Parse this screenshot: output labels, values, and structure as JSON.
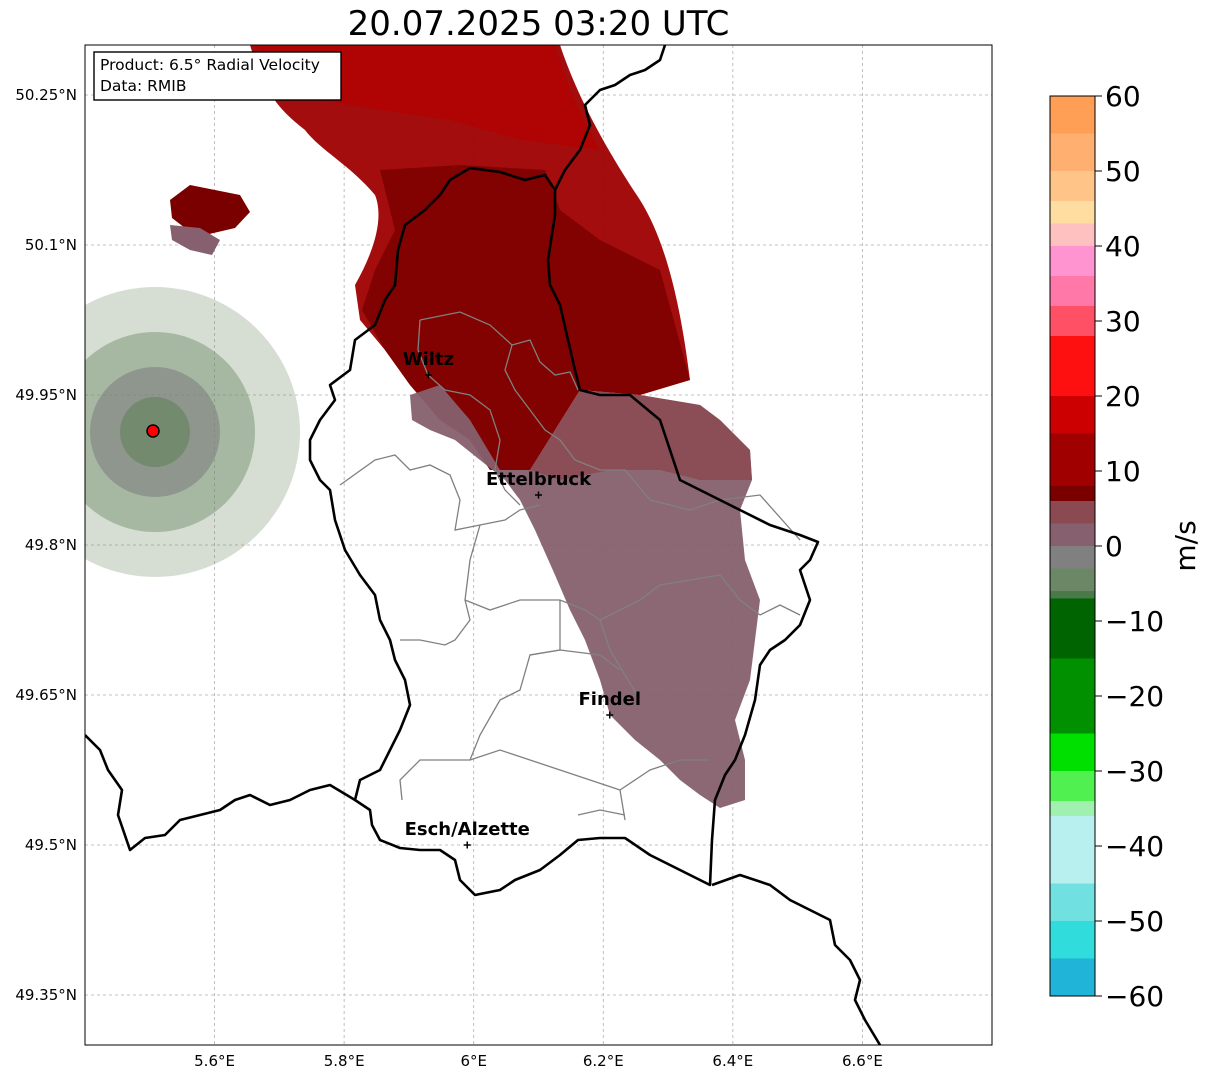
{
  "title": "20.07.2025 03:20 UTC",
  "info": {
    "product": "Product: 6.5° Radial Velocity",
    "data": "Data: RMIB"
  },
  "map": {
    "lon_range": [
      5.4,
      6.8
    ],
    "lat_range": [
      49.3,
      50.3
    ],
    "lat_ticks": [
      {
        "value": 50.25,
        "label": "50.25°N"
      },
      {
        "value": 50.1,
        "label": "50.1°N"
      },
      {
        "value": 49.95,
        "label": "49.95°N"
      },
      {
        "value": 49.8,
        "label": "49.8°N"
      },
      {
        "value": 49.65,
        "label": "49.65°N"
      },
      {
        "value": 49.5,
        "label": "49.5°N"
      },
      {
        "value": 49.35,
        "label": "49.35°N"
      }
    ],
    "lon_ticks": [
      {
        "value": 5.6,
        "label": "5.6°E"
      },
      {
        "value": 5.8,
        "label": "5.8°E"
      },
      {
        "value": 6.0,
        "label": "6°E"
      },
      {
        "value": 6.2,
        "label": "6.2°E"
      },
      {
        "value": 6.4,
        "label": "6.4°E"
      },
      {
        "value": 6.6,
        "label": "6.6°E"
      }
    ],
    "gridlines": true,
    "cities": [
      {
        "name": "Wiltz",
        "lon": 5.93,
        "lat": 49.97
      },
      {
        "name": "Ettelbruck",
        "lon": 6.1,
        "lat": 49.85
      },
      {
        "name": "Findel",
        "lon": 6.21,
        "lat": 49.63
      },
      {
        "name": "Esch/Alzette",
        "lon": 5.99,
        "lat": 49.5
      }
    ],
    "radar_site": {
      "lon": 5.505,
      "lat": 49.914,
      "color": "#ff0000"
    }
  },
  "colorbar": {
    "unit": "m/s",
    "vmin": -60,
    "vmax": 60,
    "ticks": [
      {
        "value": 60,
        "label": "60"
      },
      {
        "value": 50,
        "label": "50"
      },
      {
        "value": 40,
        "label": "40"
      },
      {
        "value": 30,
        "label": "30"
      },
      {
        "value": 20,
        "label": "20"
      },
      {
        "value": 10,
        "label": "10"
      },
      {
        "value": 0,
        "label": "0"
      },
      {
        "value": -10,
        "label": "−10"
      },
      {
        "value": -20,
        "label": "−20"
      },
      {
        "value": -30,
        "label": "−30"
      },
      {
        "value": -40,
        "label": "−40"
      },
      {
        "value": -50,
        "label": "−50"
      },
      {
        "value": -60,
        "label": "−60"
      }
    ],
    "stops": [
      {
        "value": 60,
        "color": "#ff9e55"
      },
      {
        "value": 55,
        "color": "#ffb070"
      },
      {
        "value": 50,
        "color": "#ffc488"
      },
      {
        "value": 46,
        "color": "#ffdca0"
      },
      {
        "value": 43,
        "color": "#ffc0c0"
      },
      {
        "value": 40,
        "color": "#ff94d0"
      },
      {
        "value": 36,
        "color": "#ff78a8"
      },
      {
        "value": 32,
        "color": "#ff5066"
      },
      {
        "value": 28,
        "color": "#ff1010"
      },
      {
        "value": 20,
        "color": "#cc0000"
      },
      {
        "value": 15,
        "color": "#a00000"
      },
      {
        "value": 8,
        "color": "#7a0000"
      },
      {
        "value": 6,
        "color": "#8b4a52"
      },
      {
        "value": 3,
        "color": "#86606e"
      },
      {
        "value": 0,
        "color": "#808080"
      },
      {
        "value": -3,
        "color": "#6c8766"
      },
      {
        "value": -6,
        "color": "#4a7a4a"
      },
      {
        "value": -7,
        "color": "#006400"
      },
      {
        "value": -15,
        "color": "#009000"
      },
      {
        "value": -25,
        "color": "#00e000"
      },
      {
        "value": -30,
        "color": "#50f050"
      },
      {
        "value": -34,
        "color": "#a0f0b0"
      },
      {
        "value": -36,
        "color": "#b8f0f0"
      },
      {
        "value": -45,
        "color": "#70e0e0"
      },
      {
        "value": -50,
        "color": "#30dcdc"
      },
      {
        "value": -55,
        "color": "#20b4d8"
      },
      {
        "value": -60,
        "color": "#1f78c8"
      }
    ]
  }
}
